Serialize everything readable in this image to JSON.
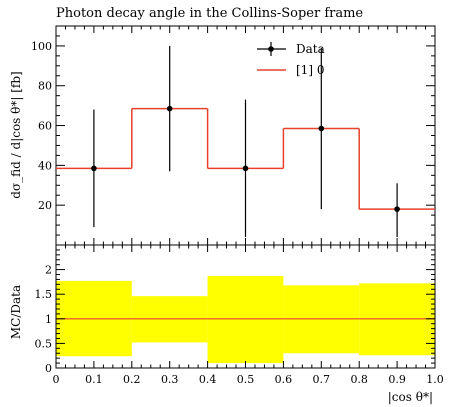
{
  "title": "Photon decay angle in the Collins-Soper frame",
  "chart_data": [
    {
      "type": "bar",
      "panel": "main",
      "xlabel": "|cos θ*|",
      "ylabel": "dσ_fid / d|cos θ*| [fb]",
      "xlim": [
        0,
        1
      ],
      "ylim": [
        0,
        110
      ],
      "yticks": [
        20,
        40,
        60,
        80,
        100
      ],
      "grid": false,
      "legend": {
        "placement": "top-right",
        "entries": [
          {
            "label": "Data",
            "style": "marker-errorbar",
            "color": "#000000"
          },
          {
            "label": "[1] 0",
            "style": "histogram",
            "color": "#e8402a"
          }
        ]
      },
      "series": [
        {
          "name": "[1] 0",
          "kind": "histogram",
          "bin_edges": [
            0,
            0.2,
            0.4,
            0.6,
            0.8,
            1.0
          ],
          "values": [
            38.5,
            68.5,
            38.5,
            58.5,
            18.0
          ]
        },
        {
          "name": "Data",
          "kind": "points",
          "x": [
            0.1,
            0.3,
            0.5,
            0.7,
            0.9
          ],
          "y": [
            38.5,
            68.5,
            38.5,
            58.5,
            18.0
          ],
          "y_low": [
            9,
            37,
            4,
            18,
            4
          ],
          "y_high": [
            68,
            100,
            73,
            99,
            31
          ]
        }
      ]
    },
    {
      "type": "area",
      "panel": "ratio",
      "xlabel": "|cos θ*|",
      "ylabel": "MC/Data",
      "xlim": [
        0,
        1
      ],
      "ylim": [
        0,
        2.5
      ],
      "xticks": [
        0,
        0.1,
        0.2,
        0.3,
        0.4,
        0.5,
        0.6,
        0.7,
        0.8,
        0.9,
        1.0
      ],
      "xticklabels": [
        "0",
        "0.1",
        "0.2",
        "0.3",
        "0.4",
        "0.5",
        "0.6",
        "0.7",
        "0.8",
        "0.9",
        "1.0"
      ],
      "yticks": [
        0,
        0.5,
        1,
        1.5,
        2
      ],
      "yticklabels": [
        "0",
        "0.5",
        "1",
        "1.5",
        "2"
      ],
      "reference_line": 1,
      "band_color": "#ffff00",
      "band": {
        "bin_edges": [
          0,
          0.2,
          0.4,
          0.6,
          0.8,
          1.0
        ],
        "low": [
          0.24,
          0.52,
          0.1,
          0.3,
          0.26
        ],
        "high": [
          1.77,
          1.46,
          1.87,
          1.68,
          1.72
        ]
      }
    }
  ],
  "colors": {
    "data": "#000000",
    "mc": "#e8402a",
    "band": "#ffff00"
  }
}
